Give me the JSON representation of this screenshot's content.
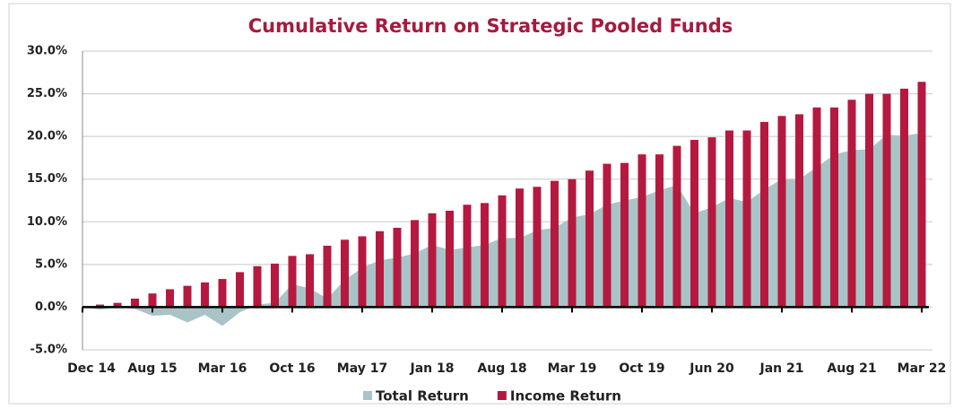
{
  "chart_data": {
    "type": "bar-area",
    "title": "Cumulative Return on Strategic Pooled Funds",
    "categories": [
      "Dec 14",
      null,
      null,
      null,
      "Aug 15",
      null,
      null,
      null,
      "Mar 16",
      null,
      null,
      null,
      "Oct 16",
      null,
      null,
      null,
      "May 17",
      null,
      null,
      null,
      "Jan 18",
      null,
      null,
      null,
      "Aug 18",
      null,
      null,
      null,
      "Mar 19",
      null,
      null,
      null,
      "Oct 19",
      null,
      null,
      null,
      "Jun 20",
      null,
      null,
      null,
      "Jan 21",
      null,
      null,
      null,
      "Aug 21",
      null,
      null,
      null,
      "Mar 22"
    ],
    "series": [
      {
        "name": "Total Return",
        "color": "#a9c4c6",
        "kind": "area",
        "values": [
          0,
          -0.3,
          0,
          -0.2,
          -1.0,
          -0.9,
          -1.8,
          -0.9,
          -2.2,
          -0.6,
          0.3,
          0.5,
          2.7,
          2.2,
          1.0,
          3.2,
          4.6,
          5.5,
          5.8,
          6.3,
          7.3,
          6.7,
          7.0,
          7.3,
          8.1,
          8.1,
          9.0,
          9.3,
          10.5,
          10.9,
          12.0,
          12.5,
          12.9,
          13.7,
          14.3,
          11.0,
          11.7,
          12.8,
          12.3,
          13.8,
          15.0,
          15.0,
          16.4,
          17.9,
          18.4,
          18.5,
          20.2,
          20.1,
          20.4
        ]
      },
      {
        "name": "Income Return",
        "color": "#b5193f",
        "kind": "bar",
        "values": [
          0,
          0.3,
          0.5,
          1.0,
          1.6,
          2.1,
          2.5,
          2.9,
          3.3,
          4.1,
          4.8,
          5.1,
          6.0,
          6.2,
          7.2,
          7.9,
          8.3,
          8.9,
          9.3,
          10.2,
          11.0,
          11.3,
          12.0,
          12.2,
          13.1,
          13.9,
          14.1,
          14.8,
          15.0,
          16.0,
          16.8,
          16.9,
          17.9,
          17.9,
          18.9,
          19.6,
          19.9,
          20.7,
          20.7,
          21.7,
          22.4,
          22.6,
          23.4,
          23.4,
          24.3,
          25.0,
          25.0,
          25.6,
          26.4
        ]
      }
    ],
    "ylim": [
      -5,
      30
    ],
    "yticks": [
      {
        "value": -5,
        "label": "-5.0%"
      },
      {
        "value": 0,
        "label": "0.0%"
      },
      {
        "value": 5,
        "label": "5.0%"
      },
      {
        "value": 10,
        "label": "10.0%"
      },
      {
        "value": 15,
        "label": "15.0%"
      },
      {
        "value": 20,
        "label": "20.0%"
      },
      {
        "value": 25,
        "label": "25.0%"
      },
      {
        "value": 30,
        "label": "30.0%"
      }
    ],
    "grid": true
  }
}
